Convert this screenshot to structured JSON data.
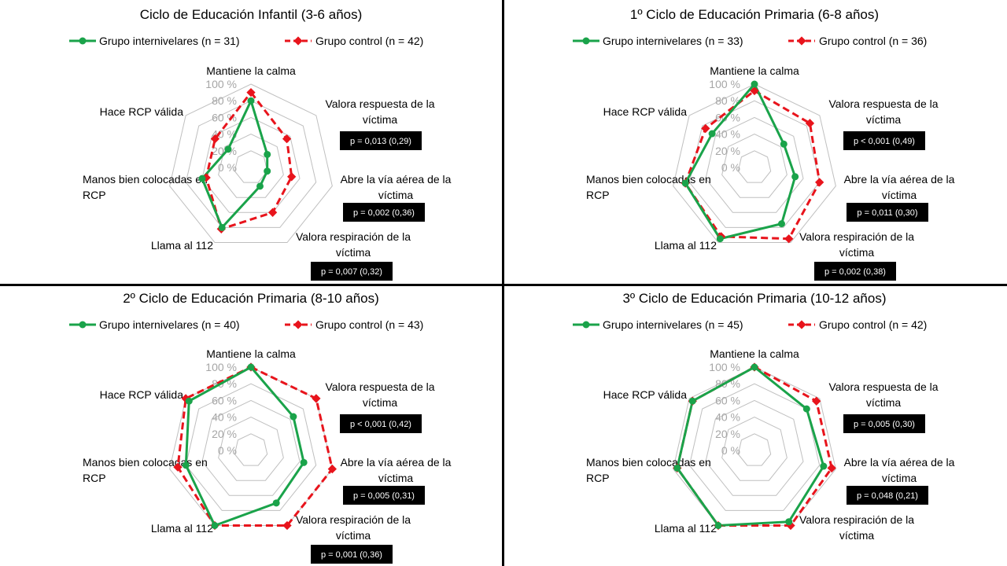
{
  "colors": {
    "green": "#1aa34a",
    "red": "#e8141c",
    "grid": "#bfbfbf",
    "tick": "#a6a6a6",
    "text": "#000000"
  },
  "tick_labels": [
    "0 %",
    "20 %",
    "40 %",
    "60 %",
    "80 %",
    "100 %"
  ],
  "chart_data": [
    {
      "type": "radar",
      "title": "Ciclo de Educación Infantil (3-6 años)",
      "axes": [
        "Mantiene la calma",
        "Valora respuesta de la víctima",
        "Abre la vía aérea de la víctima",
        "Valora respiración de la víctima",
        "Llama al 112",
        "Manos bien colocadas en RCP",
        "Hace RCP válida"
      ],
      "rmin": 0,
      "rmax": 100,
      "series": [
        {
          "name": "Grupo internivelares (n = 31)",
          "values": [
            80,
            25,
            20,
            25,
            80,
            60,
            35
          ]
        },
        {
          "name": "Grupo control (n = 42)",
          "values": [
            90,
            55,
            50,
            60,
            82,
            55,
            55
          ]
        }
      ],
      "annotations": [
        {
          "axis": 1,
          "text": "p = 0,013 (0,29)"
        },
        {
          "axis": 2,
          "text": "p = 0,002 (0,36)"
        },
        {
          "axis": 3,
          "text": "p = 0,007 (0,32)"
        }
      ]
    },
    {
      "type": "radar",
      "title": "1º Ciclo de Educación Primaria (6-8 años)",
      "axes": [
        "Mantiene la calma",
        "Valora respuesta de la víctima",
        "Abre la vía aérea de la víctima",
        "Valora respiración de la víctima",
        "Llama al 112",
        "Manos bien colocadas en RCP",
        "Hace RCP válida"
      ],
      "rmin": 0,
      "rmax": 100,
      "series": [
        {
          "name": "Grupo internivelares (n = 33)",
          "values": [
            100,
            45,
            50,
            75,
            95,
            85,
            65
          ]
        },
        {
          "name": "Grupo control (n = 36)",
          "values": [
            92,
            85,
            80,
            95,
            92,
            85,
            75
          ]
        }
      ],
      "annotations": [
        {
          "axis": 1,
          "text": "p < 0,001 (0,49)"
        },
        {
          "axis": 2,
          "text": "p = 0,011 (0,30)"
        },
        {
          "axis": 3,
          "text": "p = 0,002 (0,38)"
        }
      ]
    },
    {
      "type": "radar",
      "title": "2º Ciclo de Educación Primaria (8-10 años)",
      "axes": [
        "Mantiene la calma",
        "Valora respuesta de la víctima",
        "Abre la vía aérea de la víctima",
        "Valora respiración de la víctima",
        "Llama al 112",
        "Manos bien colocadas en RCP",
        "Hace RCP válida"
      ],
      "rmin": 0,
      "rmax": 100,
      "series": [
        {
          "name": "Grupo internivelares (n = 40)",
          "values": [
            100,
            65,
            65,
            70,
            100,
            80,
            95
          ]
        },
        {
          "name": "Grupo control (n = 43)",
          "values": [
            100,
            100,
            100,
            100,
            100,
            90,
            100
          ]
        }
      ],
      "annotations": [
        {
          "axis": 1,
          "text": "p < 0,001 (0,42)"
        },
        {
          "axis": 2,
          "text": "p = 0,005 (0,31)"
        },
        {
          "axis": 3,
          "text": "p = 0,001 (0,36)"
        }
      ]
    },
    {
      "type": "radar",
      "title": "3º Ciclo de Educación Primaria (10-12 años)",
      "axes": [
        "Mantiene la calma",
        "Valora respuesta de la víctima",
        "Abre la vía aérea de la víctima",
        "Valora respiración de la víctima",
        "Llama al 112",
        "Manos bien colocadas en RCP",
        "Hace RCP válida"
      ],
      "rmin": 0,
      "rmax": 100,
      "series": [
        {
          "name": "Grupo internivelares (n = 45)",
          "values": [
            100,
            80,
            85,
            95,
            100,
            95,
            95
          ]
        },
        {
          "name": "Grupo control (n = 42)",
          "values": [
            100,
            95,
            95,
            100,
            100,
            95,
            95
          ]
        }
      ],
      "annotations": [
        {
          "axis": 1,
          "text": "p = 0,005 (0,30)"
        },
        {
          "axis": 2,
          "text": "p = 0,048 (0,21)"
        },
        {
          "axis": 3,
          "text": ""
        }
      ]
    }
  ]
}
